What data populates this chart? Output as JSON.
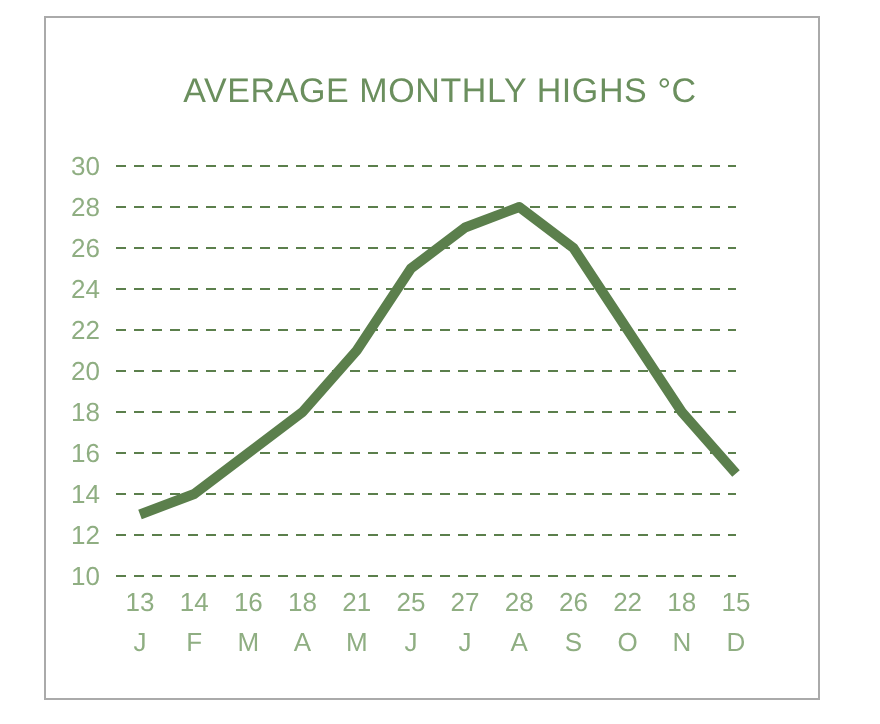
{
  "chart_data": {
    "type": "line",
    "title": "AVERAGE MONTHLY HIGHS °C",
    "categories": [
      "J",
      "F",
      "M",
      "A",
      "M",
      "J",
      "J",
      "A",
      "S",
      "O",
      "N",
      "D"
    ],
    "values": [
      13,
      14,
      16,
      18,
      21,
      25,
      27,
      28,
      26,
      22,
      18,
      15
    ],
    "color": "#5b7f4c",
    "ylim": [
      10,
      30
    ],
    "yticks": [
      10,
      12,
      14,
      16,
      18,
      20,
      22,
      24,
      26,
      28,
      30
    ],
    "grid": "y",
    "marker": "none",
    "line_style": "solid",
    "data_labels": true
  }
}
